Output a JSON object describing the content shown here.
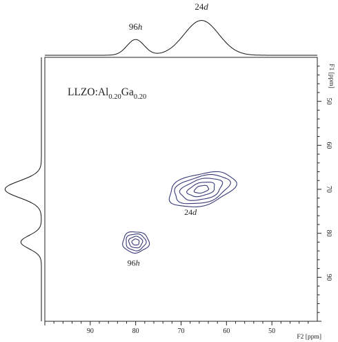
{
  "chart_data": {
    "type": "contour",
    "sample_label": {
      "base": "LLZO:Al",
      "sub1": "0.20",
      "mid": "Ga",
      "sub2": "0.20"
    },
    "xlabel": "F2 [ppm]",
    "ylabel": "F1 [ppm]",
    "xlim": [
      100,
      40
    ],
    "ylim": [
      40,
      100
    ],
    "x_ticks": [
      90,
      80,
      70,
      60,
      50
    ],
    "y_ticks": [
      50,
      60,
      70,
      80,
      90
    ],
    "peaks": [
      {
        "label_num": "96",
        "label_site": "h",
        "x": 80,
        "y": 82
      },
      {
        "label_num": "24",
        "label_site": "d",
        "x": 65.5,
        "y": 70
      }
    ],
    "top_projection": {
      "peaks": [
        {
          "center": 80,
          "width": 1.9,
          "amplitude": 0.38
        },
        {
          "center": 65.5,
          "width": 3.8,
          "amplitude": 0.84
        }
      ]
    },
    "left_projection": {
      "peaks": [
        {
          "center": 70,
          "width": 1.9,
          "amplitude": 0.85
        },
        {
          "center": 82,
          "width": 1.5,
          "amplitude": 0.48
        }
      ]
    },
    "contours": [
      {
        "peak": "96h",
        "center": [
          80,
          82
        ],
        "rx": [
          2.9,
          2.2,
          1.5,
          0.8
        ],
        "ry": [
          2.4,
          1.9,
          1.3,
          0.7
        ],
        "tilt_deg": 0
      },
      {
        "peak": "24d",
        "center": [
          65.5,
          70
        ],
        "rx": [
          7.5,
          6.2,
          4.7,
          3.1,
          1.6
        ],
        "ry": [
          3.6,
          3.0,
          2.3,
          1.5,
          0.8
        ],
        "tilt_deg": -14
      }
    ],
    "contour_color": "#363a78",
    "line_color": "#111111",
    "grid": false
  }
}
